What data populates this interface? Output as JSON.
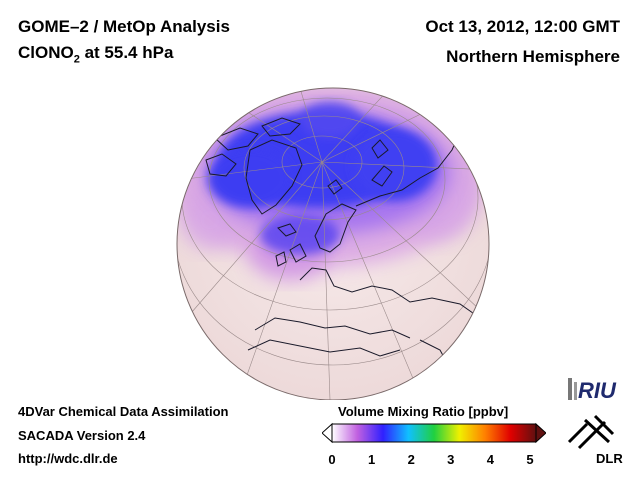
{
  "header": {
    "title_line1": "GOME–2 / MetOp Analysis",
    "title_species_prefix": "ClONO",
    "title_species_sub": "2",
    "title_species_suffix": " at 55.4 hPa",
    "datetime": "Oct 13, 2012, 12:00 GMT",
    "hemisphere": "Northern Hemisphere"
  },
  "footer": {
    "line1": "4DVar Chemical Data Assimilation",
    "line2": "SACADA Version 2.4",
    "line3": "http://wdc.dlr.de"
  },
  "colorbar": {
    "title": "Volume Mixing Ratio [ppbv]",
    "min": 0,
    "max": 5,
    "ticks": [
      "0",
      "1",
      "2",
      "3",
      "4",
      "5"
    ],
    "colors": [
      "#ffffff",
      "#c060e0",
      "#3020ff",
      "#10c0ff",
      "#20d040",
      "#f0f000",
      "#ff8000",
      "#e00000",
      "#601010"
    ]
  },
  "logos": {
    "riu": "RIU",
    "dlr": "DLR"
  },
  "map": {
    "projection": "orthographic",
    "ocean_color": "#f2e2e2",
    "low_color": "#3a3af0",
    "mid_color": "#d090e0"
  }
}
